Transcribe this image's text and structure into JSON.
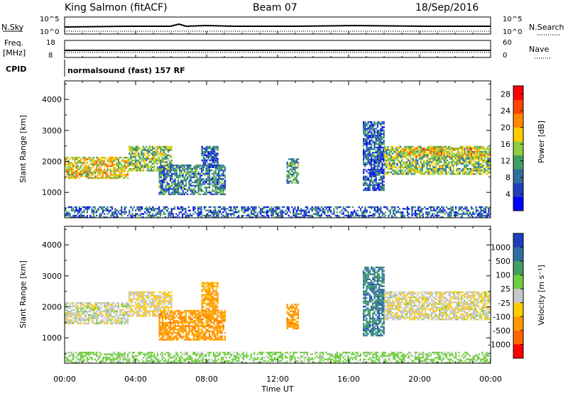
{
  "header": {
    "station": "King Salmon (fitACF)",
    "beam": "Beam 07",
    "date": "18/Sep/2016"
  },
  "strips": {
    "nsky_label": "N.Sky",
    "nsky_ticks": [
      "10^5",
      "10^0"
    ],
    "nsearch_label": "N.Search",
    "nsearch_ticks": [
      "10^5",
      "10^0"
    ],
    "freq_label": "Freq.",
    "freq_unit": "[MHz]",
    "freq_ticks": [
      "18",
      "8"
    ],
    "nave_label": "Nave",
    "nave_ticks": [
      "60",
      "0"
    ],
    "cpid_label": "CPID",
    "cpid_value": "normalsound (fast) 157 RF"
  },
  "chart_data": [
    {
      "type": "heatmap",
      "name": "power-panel",
      "ylabel": "Slant Range [km]",
      "xlabel": "Time UT",
      "xlim": [
        "00:00",
        "24:00"
      ],
      "ylim": [
        180,
        4600
      ],
      "y_ticks": [
        1000,
        2000,
        3000,
        4000
      ],
      "x_ticks": [
        "00:00",
        "04:00",
        "08:00",
        "12:00",
        "16:00",
        "20:00",
        "00:00"
      ],
      "colorbar": {
        "label": "Power [dB]",
        "ticks": [
          4,
          8,
          12,
          16,
          20,
          24,
          28
        ],
        "range": [
          0,
          30
        ],
        "colors": [
          "#0000ff",
          "#1f3fbf",
          "#2f6fa0",
          "#3f9f5f",
          "#8fcf3f",
          "#ffcc00",
          "#ff8800",
          "#ff4400",
          "#ff0000"
        ]
      },
      "regions": [
        {
          "t0": 0.0,
          "t1": 3.6,
          "r0": 1450,
          "r1": 2150,
          "value": 18
        },
        {
          "t0": 3.6,
          "t1": 6.0,
          "r0": 1700,
          "r1": 2500,
          "value": 14
        },
        {
          "t0": 5.3,
          "t1": 9.0,
          "r0": 950,
          "r1": 1900,
          "value": 8
        },
        {
          "t0": 7.7,
          "t1": 8.6,
          "r0": 1800,
          "r1": 2500,
          "value": 6
        },
        {
          "t0": 12.5,
          "t1": 13.2,
          "r0": 1300,
          "r1": 2100,
          "value": 10
        },
        {
          "t0": 16.8,
          "t1": 18.0,
          "r0": 1100,
          "r1": 3300,
          "value": 6
        },
        {
          "t0": 18.0,
          "t1": 24.0,
          "r0": 1600,
          "r1": 2500,
          "value": 14
        },
        {
          "t0": 19.0,
          "t1": 23.5,
          "r0": 2150,
          "r1": 2450,
          "value": 20
        },
        {
          "t0": 0.0,
          "t1": 24.0,
          "r0": 200,
          "r1": 550,
          "value": 6
        }
      ]
    },
    {
      "type": "heatmap",
      "name": "velocity-panel",
      "ylabel": "Slant Range [km]",
      "xlabel": "Time UT",
      "xlim": [
        "00:00",
        "24:00"
      ],
      "ylim": [
        180,
        4600
      ],
      "y_ticks": [
        1000,
        2000,
        3000,
        4000
      ],
      "x_ticks": [
        "00:00",
        "04:00",
        "08:00",
        "12:00",
        "16:00",
        "20:00",
        "00:00"
      ],
      "colorbar": {
        "label": "Velocity [m s⁻¹]",
        "ticks": [
          "1000",
          "500",
          "100",
          "25",
          "-25",
          "-100",
          "-500",
          "-1000"
        ],
        "colors": [
          "#1f3fbf",
          "#2f6fa0",
          "#3f9f5f",
          "#6fcf3f",
          "#c8c8c8",
          "#ffcc00",
          "#ff9900",
          "#ff6600",
          "#ff0000"
        ]
      },
      "regions": [
        {
          "t0": 0.0,
          "t1": 3.6,
          "r0": 1450,
          "r1": 2150,
          "value": 0
        },
        {
          "t0": 3.6,
          "t1": 6.0,
          "r0": 1700,
          "r1": 2500,
          "value": -20
        },
        {
          "t0": 5.3,
          "t1": 9.0,
          "r0": 950,
          "r1": 1900,
          "value": -300
        },
        {
          "t0": 7.7,
          "t1": 8.6,
          "r0": 1800,
          "r1": 2800,
          "value": -200
        },
        {
          "t0": 12.5,
          "t1": 13.2,
          "r0": 1300,
          "r1": 2100,
          "value": -300
        },
        {
          "t0": 16.8,
          "t1": 18.0,
          "r0": 1100,
          "r1": 3300,
          "value": 600
        },
        {
          "t0": 18.0,
          "t1": 24.0,
          "r0": 1600,
          "r1": 2500,
          "value": -10
        },
        {
          "t0": 0.0,
          "t1": 24.0,
          "r0": 200,
          "r1": 550,
          "value": 50
        }
      ]
    }
  ]
}
